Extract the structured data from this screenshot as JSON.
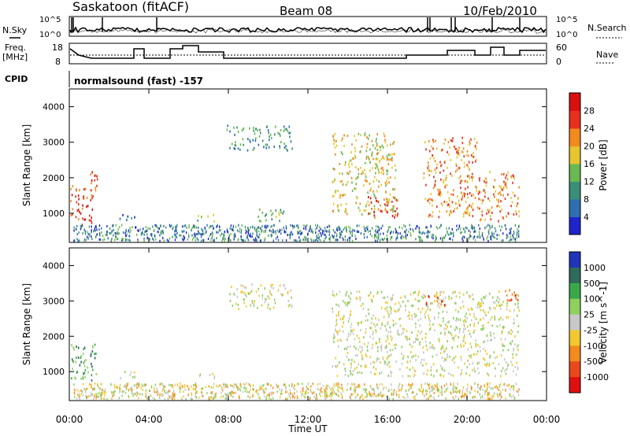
{
  "header": {
    "station": "Saskatoon (fitACF)",
    "beam": "Beam 08",
    "date": "10/Feb/2010"
  },
  "summary_panels": {
    "nsky_label": "N.Sky",
    "nsky_ticks": [
      "10^5",
      "10^0"
    ],
    "nsearch_label": "N.Search",
    "nsearch_ticks": [
      "10^5",
      "10^0"
    ],
    "freq_label": "Freq.",
    "freq_unit": "[MHz]",
    "freq_ticks": [
      "18",
      "8"
    ],
    "nave_label": "Nave",
    "nave_ticks": [
      "60",
      "0"
    ],
    "cpid_label": "CPID",
    "cpid_text": "normalsound (fast) -157"
  },
  "chart_data": [
    {
      "type": "heatmap",
      "panel": "power",
      "ylabel": "Slant Range [km]",
      "ylim": [
        180,
        4500
      ],
      "yticks": [
        "1000",
        "2000",
        "3000",
        "4000"
      ],
      "colorbar": {
        "label": "Power [dB]",
        "ticks": [
          "4",
          "8",
          "12",
          "16",
          "20",
          "24",
          "28"
        ],
        "colors": [
          "#1f25c8",
          "#2e6fb0",
          "#3b8f78",
          "#6ab852",
          "#e6c530",
          "#f28a1e",
          "#e8301e",
          "#d81010"
        ]
      },
      "regions": [
        {
          "t0": 0.05,
          "t1": 1.2,
          "r0": 700,
          "r1": 1800,
          "level": 6
        },
        {
          "t0": 1.0,
          "t1": 1.4,
          "r0": 1300,
          "r1": 2200,
          "level": 6
        },
        {
          "t0": 2.5,
          "t1": 3.3,
          "r0": 800,
          "r1": 1050,
          "level": 1
        },
        {
          "t0": 6.4,
          "t1": 7.3,
          "r0": 800,
          "r1": 1000,
          "level": 3
        },
        {
          "t0": 7.9,
          "t1": 11.2,
          "r0": 2800,
          "r1": 3500,
          "level": 2
        },
        {
          "t0": 9.3,
          "t1": 10.8,
          "r0": 800,
          "r1": 1200,
          "level": 3
        },
        {
          "t0": 13.2,
          "t1": 16.4,
          "r0": 1000,
          "r1": 3300,
          "level": 4
        },
        {
          "t0": 15.0,
          "t1": 16.5,
          "r0": 900,
          "r1": 1500,
          "level": 6
        },
        {
          "t0": 17.8,
          "t1": 20.5,
          "r0": 900,
          "r1": 3200,
          "level": 5
        },
        {
          "t0": 20.5,
          "t1": 22.6,
          "r0": 800,
          "r1": 2200,
          "level": 5
        }
      ]
    },
    {
      "type": "heatmap",
      "panel": "velocity",
      "ylabel": "Slant Range [km]",
      "ylim": [
        180,
        4500
      ],
      "yticks": [
        "1000",
        "2000",
        "3000",
        "4000"
      ],
      "colorbar": {
        "label": "Velocity [m s^-1]",
        "ticks": [
          "1000",
          "500",
          "100",
          "25",
          "-25",
          "-100",
          "-500",
          "-1000"
        ],
        "colors": [
          "#2035b8",
          "#2f6a5a",
          "#3aa84a",
          "#8fd060",
          "#c8c8c8",
          "#f2c830",
          "#f28a1e",
          "#e84a1e",
          "#e01010"
        ]
      },
      "regions": [
        {
          "t0": 0.05,
          "t1": 1.4,
          "r0": 700,
          "r1": 1800,
          "level": 2
        },
        {
          "t0": 2.5,
          "t1": 3.3,
          "r0": 800,
          "r1": 1050,
          "level": 4
        },
        {
          "t0": 6.4,
          "t1": 7.3,
          "r0": 800,
          "r1": 1000,
          "level": 4
        },
        {
          "t0": 7.9,
          "t1": 11.2,
          "r0": 2800,
          "r1": 3500,
          "level": 4
        },
        {
          "t0": 13.2,
          "t1": 22.6,
          "r0": 900,
          "r1": 3300,
          "level": 4
        },
        {
          "t0": 17.8,
          "t1": 19.0,
          "r0": 2900,
          "r1": 3200,
          "level": 7
        },
        {
          "t0": 21.8,
          "t1": 22.6,
          "r0": 3000,
          "r1": 3500,
          "level": 7
        }
      ]
    }
  ],
  "time_axis": {
    "label": "Time UT",
    "range_hours": [
      0,
      24
    ],
    "ticks": [
      "00:00",
      "04:00",
      "08:00",
      "12:00",
      "16:00",
      "20:00",
      "00:00"
    ]
  }
}
